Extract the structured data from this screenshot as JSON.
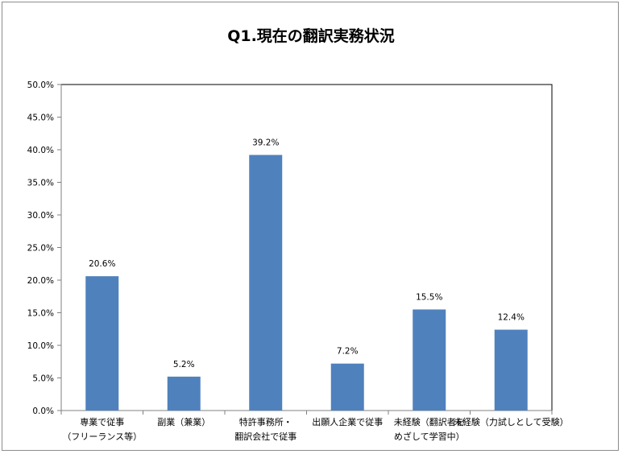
{
  "chart_data": {
    "type": "bar",
    "title": "Q1.現在の翻訳実務状況",
    "categories": [
      [
        "専業で従事",
        "（フリーランス等）"
      ],
      [
        "副業（兼業）"
      ],
      [
        "特許事務所・",
        "翻訳会社で従事"
      ],
      [
        "出願人企業で従事"
      ],
      [
        "未経験（翻訳者を",
        "めざして学習中）"
      ],
      [
        "未経験（力試しとして受験）"
      ]
    ],
    "values": [
      20.6,
      5.2,
      39.2,
      7.2,
      15.5,
      12.4
    ],
    "data_labels": [
      "20.6%",
      "5.2%",
      "39.2%",
      "7.2%",
      "15.5%",
      "12.4%"
    ],
    "ylim": [
      0,
      50
    ],
    "yticks": [
      0,
      5,
      10,
      15,
      20,
      25,
      30,
      35,
      40,
      45,
      50
    ],
    "ytick_labels": [
      "0.0%",
      "5.0%",
      "10.0%",
      "15.0%",
      "20.0%",
      "25.0%",
      "30.0%",
      "35.0%",
      "40.0%",
      "45.0%",
      "50.0%"
    ],
    "xlabel": "",
    "ylabel": "",
    "grid": false,
    "legend": "none",
    "colors": {
      "bar": "#4f81bd",
      "axis": "#808080",
      "plot_border": "#000000"
    }
  }
}
